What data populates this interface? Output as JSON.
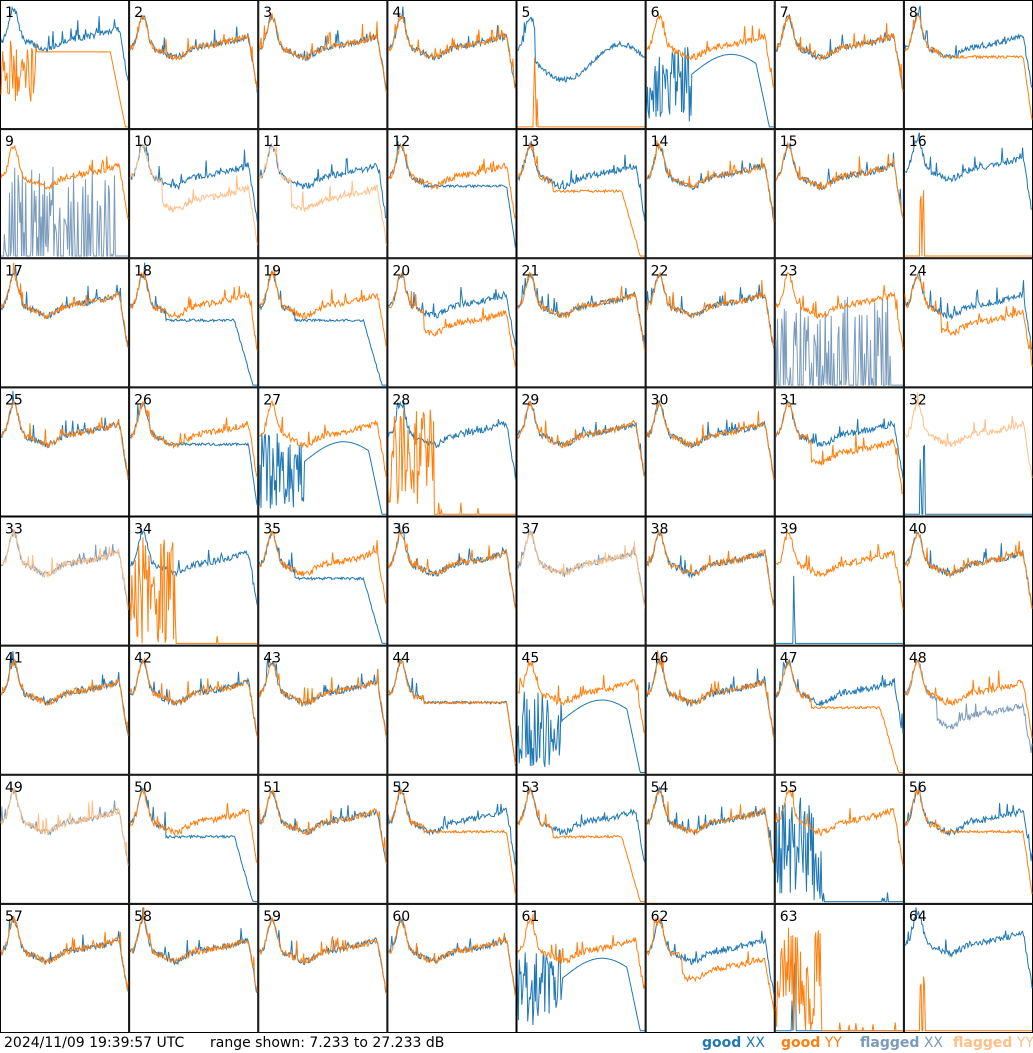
{
  "footer": {
    "timestamp": "2024/11/09 19:39:57 UTC",
    "range_text": "range shown: 7.233 to 27.233 dB",
    "legend": [
      {
        "word": "good",
        "pol": "XX",
        "color": "#1f77b4"
      },
      {
        "word": "good",
        "pol": "YY",
        "color": "#ff7f0e"
      },
      {
        "word": "flagged",
        "pol": "XX",
        "color": "#7a9bbb"
      },
      {
        "word": "flagged",
        "pol": "YY",
        "color": "#ffbf87"
      }
    ]
  },
  "chart_data": {
    "type": "line",
    "layout": "8x8 grid of small-multiple spectra",
    "ylim": [
      7.233,
      27.233
    ],
    "yunit": "dB",
    "colors": {
      "good_xx": "#1f77b4",
      "good_yy": "#ff7f0e",
      "flagged_xx": "#7a9bbb",
      "flagged_yy": "#ffbf87"
    },
    "panels": [
      {
        "label": "1",
        "xx": "normal_high",
        "yy": "noisy_drop"
      },
      {
        "label": "2",
        "xx": "normal",
        "yy": "normal"
      },
      {
        "label": "3",
        "xx": "normal",
        "yy": "normal"
      },
      {
        "label": "4",
        "xx": "normal",
        "yy": "normal"
      },
      {
        "label": "5",
        "xx": "wavy",
        "yy": "flat_low"
      },
      {
        "label": "6",
        "xx": "deep_dip",
        "yy": "normal"
      },
      {
        "label": "7",
        "xx": "normal",
        "yy": "normal"
      },
      {
        "label": "8",
        "xx": "normal",
        "yy": "plateau"
      },
      {
        "label": "9",
        "xx": "flagged_spikes",
        "yy": "normal"
      },
      {
        "label": "10",
        "xx": "normal",
        "yy": "flagged_low"
      },
      {
        "label": "11",
        "xx": "normal",
        "yy": "flagged_low"
      },
      {
        "label": "12",
        "xx": "plateau",
        "yy": "normal"
      },
      {
        "label": "13",
        "xx": "normal",
        "yy": "plateau_drop"
      },
      {
        "label": "14",
        "xx": "normal",
        "yy": "normal"
      },
      {
        "label": "15",
        "xx": "normal",
        "yy": "normal"
      },
      {
        "label": "16",
        "xx": "normal_high",
        "yy": "flat_low"
      },
      {
        "label": "17",
        "xx": "normal",
        "yy": "normal"
      },
      {
        "label": "18",
        "xx": "plateau_drop",
        "yy": "normal"
      },
      {
        "label": "19",
        "xx": "plateau_drop",
        "yy": "normal"
      },
      {
        "label": "20",
        "xx": "normal",
        "yy": "low_offset"
      },
      {
        "label": "21",
        "xx": "normal",
        "yy": "normal"
      },
      {
        "label": "22",
        "xx": "normal",
        "yy": "normal"
      },
      {
        "label": "23",
        "xx": "flagged_spikes",
        "yy": "normal"
      },
      {
        "label": "24",
        "xx": "normal",
        "yy": "low_offset"
      },
      {
        "label": "25",
        "xx": "normal",
        "yy": "normal"
      },
      {
        "label": "26",
        "xx": "plateau",
        "yy": "normal"
      },
      {
        "label": "27",
        "xx": "deep_dip",
        "yy": "normal"
      },
      {
        "label": "28",
        "xx": "normal",
        "yy": "spiky_low"
      },
      {
        "label": "29",
        "xx": "normal",
        "yy": "normal"
      },
      {
        "label": "30",
        "xx": "normal",
        "yy": "normal"
      },
      {
        "label": "31",
        "xx": "normal",
        "yy": "low_offset"
      },
      {
        "label": "32",
        "xx": "flat_low",
        "yy": "flagged_normal"
      },
      {
        "label": "33",
        "xx": "flagged_normal",
        "yy": "flagged_normal"
      },
      {
        "label": "34",
        "xx": "normal",
        "yy": "spiky_low"
      },
      {
        "label": "35",
        "xx": "plateau_drop",
        "yy": "normal"
      },
      {
        "label": "36",
        "xx": "normal",
        "yy": "normal"
      },
      {
        "label": "37",
        "xx": "flagged_normal",
        "yy": "flagged_normal"
      },
      {
        "label": "38",
        "xx": "normal",
        "yy": "normal"
      },
      {
        "label": "39",
        "xx": "flat_low",
        "yy": "normal"
      },
      {
        "label": "40",
        "xx": "normal",
        "yy": "normal"
      },
      {
        "label": "41",
        "xx": "normal",
        "yy": "normal"
      },
      {
        "label": "42",
        "xx": "normal",
        "yy": "normal"
      },
      {
        "label": "43",
        "xx": "normal",
        "yy": "normal"
      },
      {
        "label": "44",
        "xx": "plateau",
        "yy": "plateau"
      },
      {
        "label": "45",
        "xx": "deep_dip",
        "yy": "normal"
      },
      {
        "label": "46",
        "xx": "normal",
        "yy": "normal"
      },
      {
        "label": "47",
        "xx": "normal",
        "yy": "plateau_drop"
      },
      {
        "label": "48",
        "xx": "flagged_low",
        "yy": "normal"
      },
      {
        "label": "49",
        "xx": "flagged_normal",
        "yy": "flagged_normal"
      },
      {
        "label": "50",
        "xx": "plateau_drop",
        "yy": "normal"
      },
      {
        "label": "51",
        "xx": "normal",
        "yy": "normal"
      },
      {
        "label": "52",
        "xx": "normal",
        "yy": "plateau"
      },
      {
        "label": "53",
        "xx": "normal",
        "yy": "plateau_drop"
      },
      {
        "label": "54",
        "xx": "normal",
        "yy": "normal"
      },
      {
        "label": "55",
        "xx": "spiky_low",
        "yy": "normal"
      },
      {
        "label": "56",
        "xx": "normal",
        "yy": "plateau"
      },
      {
        "label": "57",
        "xx": "normal",
        "yy": "normal"
      },
      {
        "label": "58",
        "xx": "normal",
        "yy": "normal"
      },
      {
        "label": "59",
        "xx": "normal",
        "yy": "normal"
      },
      {
        "label": "60",
        "xx": "normal",
        "yy": "normal"
      },
      {
        "label": "61",
        "xx": "deep_dip",
        "yy": "normal"
      },
      {
        "label": "62",
        "xx": "normal",
        "yy": "low_offset"
      },
      {
        "label": "63",
        "xx": "flat_low",
        "yy": "spiky_low"
      },
      {
        "label": "64",
        "xx": "normal_high",
        "yy": "flat_low"
      }
    ]
  }
}
